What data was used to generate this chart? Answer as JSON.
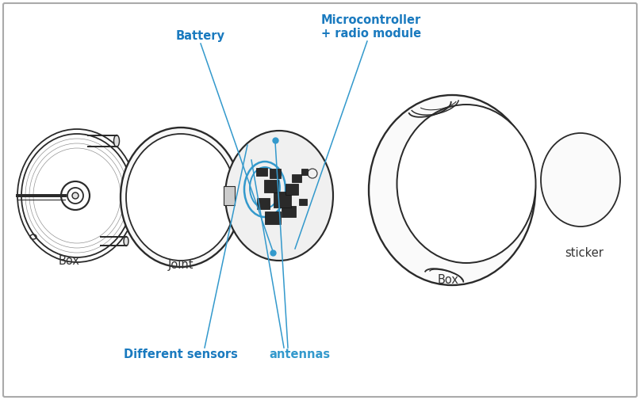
{
  "bg_color": "#ffffff",
  "border_color": "#aaaaaa",
  "line_color": "#2a2a2a",
  "blue_color": "#3399cc",
  "blue_label_color": "#1a7abf",
  "dark_label_color": "#333333",
  "labels": {
    "battery": "Battery",
    "microcontroller": "Microcontroller\n+ radio module",
    "box_left": "Box",
    "joint": "Joint",
    "different_sensors": "Different sensors",
    "antennas": "antennas",
    "box_right": "Box",
    "sticker": "sticker"
  },
  "label_fontsize": 10.5
}
